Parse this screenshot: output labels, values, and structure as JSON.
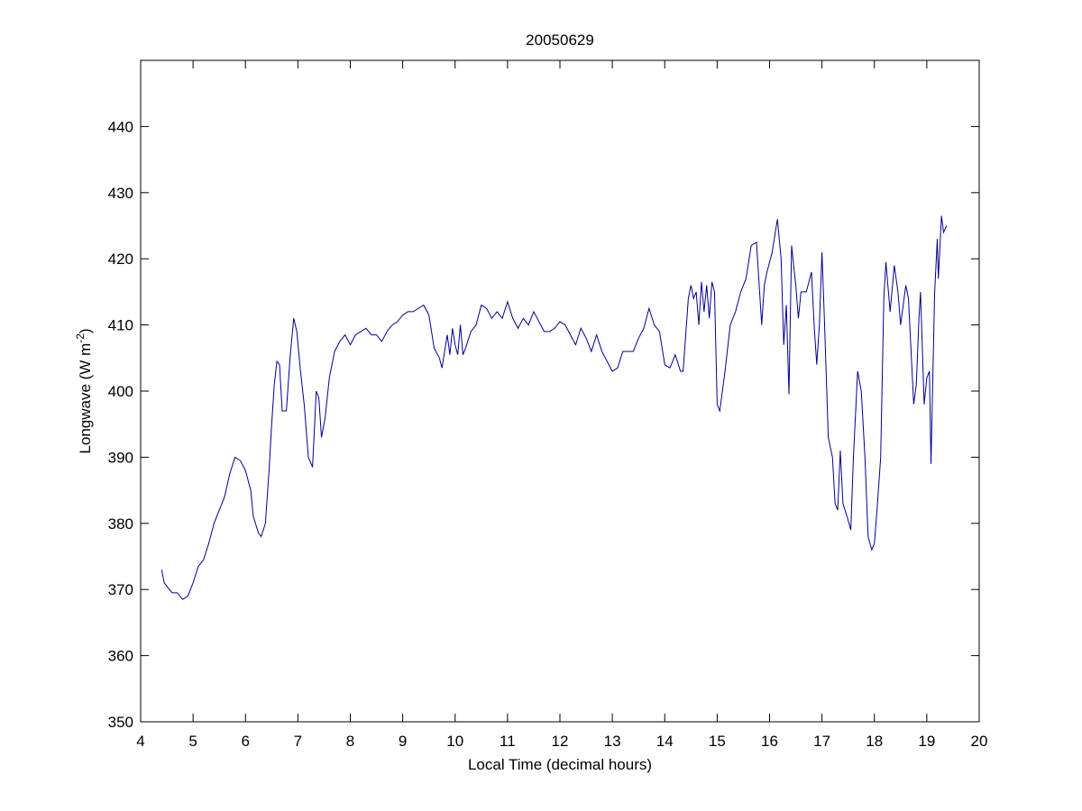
{
  "chart_data": {
    "type": "line",
    "title": "20050629",
    "xlabel": "Local Time (decimal hours)",
    "ylabel": {
      "text": "Longwave (W m",
      "superscript": "-2",
      "suffix": ")"
    },
    "x": [
      4.4,
      4.45,
      4.5,
      4.6,
      4.7,
      4.8,
      4.9,
      5.0,
      5.1,
      5.2,
      5.3,
      5.4,
      5.5,
      5.6,
      5.7,
      5.8,
      5.9,
      6.0,
      6.1,
      6.15,
      6.25,
      6.3,
      6.38,
      6.45,
      6.5,
      6.55,
      6.6,
      6.65,
      6.7,
      6.78,
      6.85,
      6.92,
      6.98,
      7.05,
      7.12,
      7.2,
      7.28,
      7.35,
      7.4,
      7.45,
      7.52,
      7.6,
      7.7,
      7.8,
      7.9,
      8.0,
      8.1,
      8.2,
      8.3,
      8.4,
      8.5,
      8.6,
      8.7,
      8.8,
      8.9,
      9.0,
      9.1,
      9.2,
      9.3,
      9.4,
      9.5,
      9.6,
      9.7,
      9.75,
      9.8,
      9.85,
      9.9,
      9.95,
      10.0,
      10.05,
      10.1,
      10.15,
      10.2,
      10.3,
      10.4,
      10.5,
      10.6,
      10.7,
      10.8,
      10.9,
      11.0,
      11.1,
      11.2,
      11.3,
      11.4,
      11.5,
      11.6,
      11.7,
      11.8,
      11.9,
      12.0,
      12.1,
      12.2,
      12.3,
      12.4,
      12.5,
      12.6,
      12.7,
      12.8,
      12.9,
      13.0,
      13.1,
      13.2,
      13.3,
      13.4,
      13.5,
      13.6,
      13.7,
      13.8,
      13.9,
      14.0,
      14.1,
      14.2,
      14.3,
      14.35,
      14.45,
      14.5,
      14.55,
      14.6,
      14.65,
      14.7,
      14.75,
      14.8,
      14.85,
      14.9,
      14.95,
      15.0,
      15.05,
      15.15,
      15.25,
      15.35,
      15.45,
      15.55,
      15.65,
      15.75,
      15.85,
      15.9,
      15.95,
      16.05,
      16.15,
      16.22,
      16.27,
      16.32,
      16.37,
      16.42,
      16.5,
      16.55,
      16.6,
      16.7,
      16.8,
      16.85,
      16.9,
      16.95,
      17.0,
      17.05,
      17.12,
      17.2,
      17.25,
      17.3,
      17.35,
      17.4,
      17.48,
      17.55,
      17.6,
      17.68,
      17.75,
      17.82,
      17.88,
      17.95,
      18.0,
      18.05,
      18.12,
      18.18,
      18.22,
      18.3,
      18.38,
      18.45,
      18.5,
      18.6,
      18.65,
      18.75,
      18.8,
      18.85,
      18.88,
      18.95,
      19.0,
      19.05,
      19.08,
      19.15,
      19.2,
      19.22,
      19.28,
      19.32,
      19.38
    ],
    "series": [
      {
        "name": "Longwave",
        "color": "#00008f",
        "values": [
          373,
          371,
          370.5,
          369.5,
          369.5,
          368.5,
          369,
          371,
          373.5,
          374.5,
          377,
          380,
          382,
          384,
          387.5,
          390,
          389.5,
          388,
          385,
          381,
          378.5,
          378,
          380,
          388,
          395,
          401,
          404.5,
          404,
          397,
          397,
          405,
          411,
          409,
          403,
          398,
          390,
          388.5,
          400,
          399,
          393,
          396,
          402,
          406,
          407.5,
          408.5,
          407,
          408.5,
          409,
          409.5,
          408.5,
          408.5,
          407.5,
          409,
          410,
          410.5,
          411.5,
          412,
          412,
          412.5,
          413,
          411.5,
          406.5,
          405,
          403.5,
          406,
          408.5,
          405.5,
          409.5,
          407,
          405.5,
          410,
          405.5,
          406.5,
          409,
          410,
          413,
          412.5,
          411,
          412,
          411,
          413.5,
          411,
          409.5,
          411,
          410,
          412,
          410.5,
          409,
          409,
          409.5,
          410.5,
          410,
          408.5,
          407,
          409.5,
          408,
          406,
          408.5,
          406,
          404.5,
          403,
          403.5,
          406,
          406,
          406,
          408,
          409.5,
          412.5,
          410,
          409,
          404,
          403.5,
          405.5,
          403,
          403,
          414,
          416,
          414,
          415,
          410,
          416.5,
          412,
          416,
          411,
          416.5,
          415,
          398,
          397,
          403,
          410,
          412,
          415,
          417,
          422,
          422.5,
          410,
          416,
          418,
          421,
          426,
          420,
          407,
          413,
          399.5,
          422,
          416,
          411,
          415,
          415,
          418,
          410,
          404,
          410,
          421,
          410,
          393,
          390,
          383,
          382,
          391,
          383,
          381,
          379,
          390,
          403,
          400,
          390,
          378,
          376,
          377,
          382,
          390,
          414,
          419.5,
          412,
          419,
          415,
          410,
          416,
          414,
          398,
          401,
          411,
          415,
          398,
          402,
          403,
          389,
          415,
          423,
          417,
          426.5,
          424,
          425
        ]
      }
    ],
    "xlim": [
      4,
      20
    ],
    "xticks": [
      4,
      5,
      6,
      7,
      8,
      9,
      10,
      11,
      12,
      13,
      14,
      15,
      16,
      17,
      18,
      19,
      20
    ],
    "ylim": [
      350,
      450
    ],
    "yticks": [
      350,
      360,
      370,
      380,
      390,
      400,
      410,
      420,
      430,
      440
    ]
  }
}
